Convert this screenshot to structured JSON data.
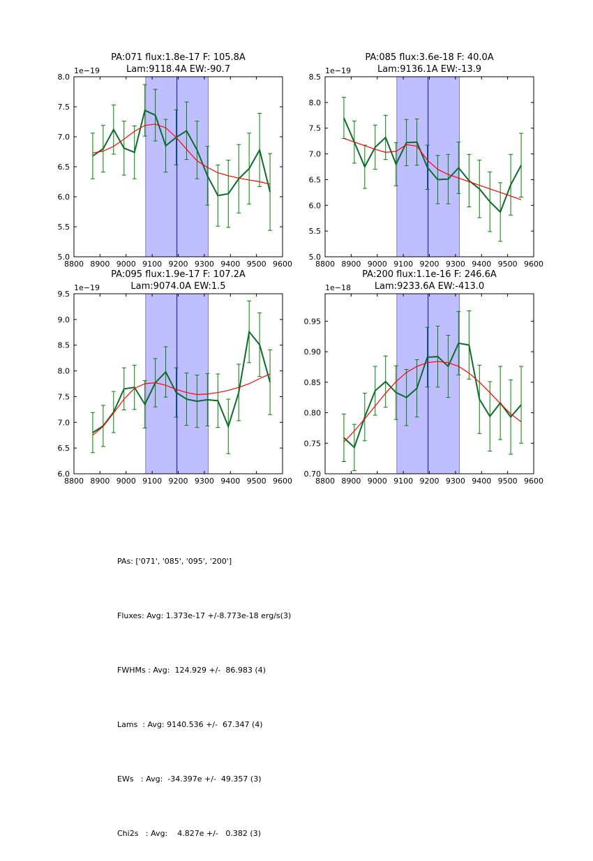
{
  "chart_data": [
    {
      "type": "line",
      "title_line1": "PA:071 flux:1.8e-17 F: 105.8A",
      "title_line2": "Lam:9118.4A EW:-90.7",
      "offset_label": "1e−19",
      "xlim": [
        8800,
        9600
      ],
      "ylim": [
        5.0,
        8.0
      ],
      "xticks": [
        "8800",
        "8900",
        "9000",
        "9100",
        "9200",
        "9300",
        "9400",
        "9500",
        "9600"
      ],
      "yticks": [
        "5.0",
        "5.5",
        "6.0",
        "6.5",
        "7.0",
        "7.5",
        "8.0"
      ],
      "band": [
        9075,
        9315
      ],
      "center_line": 9195,
      "x": [
        8872,
        8912,
        8952,
        8992,
        9032,
        9072,
        9112,
        9152,
        9192,
        9232,
        9272,
        9312,
        9352,
        9392,
        9432,
        9472,
        9512,
        9552
      ],
      "series": [
        {
          "name": "data",
          "values": [
            6.68,
            6.8,
            7.12,
            6.81,
            6.74,
            7.44,
            7.36,
            6.85,
            6.99,
            7.1,
            6.78,
            6.35,
            6.02,
            6.05,
            6.3,
            6.47,
            6.78,
            6.08
          ],
          "errors": [
            0.38,
            0.39,
            0.41,
            0.45,
            0.44,
            0.43,
            0.43,
            0.44,
            0.46,
            0.48,
            0.48,
            0.49,
            0.51,
            0.56,
            0.57,
            0.59,
            0.61,
            0.64
          ]
        },
        {
          "name": "fit",
          "values": [
            6.73,
            6.76,
            6.84,
            6.96,
            7.09,
            7.19,
            7.21,
            7.15,
            6.99,
            6.79,
            6.6,
            6.49,
            6.4,
            6.35,
            6.31,
            6.28,
            6.25,
            6.21
          ]
        }
      ]
    },
    {
      "type": "line",
      "title_line1": "PA:085 flux:3.6e-18 F: 40.0A",
      "title_line2": "Lam:9136.1A EW:-13.9",
      "offset_label": "1e−19",
      "xlim": [
        8800,
        9600
      ],
      "ylim": [
        5.0,
        8.5
      ],
      "xticks": [
        "8800",
        "8900",
        "9000",
        "9100",
        "9200",
        "9300",
        "9400",
        "9500",
        "9600"
      ],
      "yticks": [
        "5.0",
        "5.5",
        "6.0",
        "6.5",
        "7.0",
        "7.5",
        "8.0",
        "8.5"
      ],
      "band": [
        9075,
        9315
      ],
      "center_line": 9195,
      "x": [
        8872,
        8912,
        8952,
        8992,
        9032,
        9072,
        9112,
        9152,
        9192,
        9232,
        9272,
        9312,
        9352,
        9392,
        9432,
        9472,
        9512,
        9552
      ],
      "series": [
        {
          "name": "data",
          "values": [
            7.7,
            7.23,
            6.75,
            7.13,
            7.32,
            6.8,
            7.22,
            7.23,
            6.74,
            6.5,
            6.51,
            6.73,
            6.48,
            6.32,
            6.07,
            5.87,
            6.4,
            6.78
          ],
          "errors": [
            0.4,
            0.41,
            0.42,
            0.43,
            0.43,
            0.42,
            0.45,
            0.45,
            0.43,
            0.47,
            0.48,
            0.5,
            0.51,
            0.56,
            0.58,
            0.57,
            0.59,
            0.62
          ]
        },
        {
          "name": "fit",
          "values": [
            7.3,
            7.23,
            7.16,
            7.09,
            7.03,
            7.05,
            7.18,
            7.15,
            6.88,
            6.7,
            6.6,
            6.53,
            6.46,
            6.39,
            6.32,
            6.25,
            6.18,
            6.11
          ]
        }
      ]
    },
    {
      "type": "line",
      "title_line1": "PA:095 flux:1.9e-17 F: 107.2A",
      "title_line2": "Lam:9074.0A EW:1.5",
      "offset_label": "1e−19",
      "xlim": [
        8800,
        9600
      ],
      "ylim": [
        6.0,
        9.5
      ],
      "xticks": [
        "8800",
        "8900",
        "9000",
        "9100",
        "9200",
        "9300",
        "9400",
        "9500",
        "9600"
      ],
      "yticks": [
        "6.0",
        "6.5",
        "7.0",
        "7.5",
        "8.0",
        "8.5",
        "9.0",
        "9.5"
      ],
      "band": [
        9075,
        9315
      ],
      "center_line": 9195,
      "x": [
        8872,
        8912,
        8952,
        8992,
        9032,
        9072,
        9112,
        9152,
        9192,
        9232,
        9272,
        9312,
        9352,
        9392,
        9432,
        9472,
        9512,
        9552
      ],
      "series": [
        {
          "name": "data",
          "values": [
            6.8,
            6.93,
            7.2,
            7.65,
            7.68,
            7.35,
            7.77,
            7.98,
            7.58,
            7.45,
            7.41,
            7.44,
            7.42,
            6.92,
            7.58,
            8.76,
            8.51,
            7.78
          ],
          "errors": [
            0.39,
            0.4,
            0.4,
            0.41,
            0.43,
            0.46,
            0.47,
            0.49,
            0.48,
            0.51,
            0.51,
            0.51,
            0.52,
            0.53,
            0.55,
            0.6,
            0.62,
            0.63
          ]
        },
        {
          "name": "fit",
          "values": [
            6.75,
            6.92,
            7.18,
            7.45,
            7.66,
            7.75,
            7.77,
            7.72,
            7.64,
            7.58,
            7.54,
            7.55,
            7.58,
            7.62,
            7.68,
            7.75,
            7.85,
            7.94
          ]
        }
      ]
    },
    {
      "type": "line",
      "title_line1": "PA:200 flux:1.1e-16 F: 246.6A",
      "title_line2": "Lam:9233.6A EW:-413.0",
      "offset_label": "1e−18",
      "xlim": [
        8800,
        9600
      ],
      "ylim": [
        0.7,
        0.995
      ],
      "xticks": [
        "8800",
        "8900",
        "9000",
        "9100",
        "9200",
        "9300",
        "9400",
        "9500",
        "9600"
      ],
      "yticks": [
        "0.70",
        "0.75",
        "0.80",
        "0.85",
        "0.90",
        "0.95"
      ],
      "band": [
        9075,
        9315
      ],
      "center_line": 9195,
      "x": [
        8872,
        8912,
        8952,
        8992,
        9032,
        9072,
        9112,
        9152,
        9192,
        9232,
        9272,
        9312,
        9352,
        9392,
        9432,
        9472,
        9512,
        9552
      ],
      "series": [
        {
          "name": "data",
          "values": [
            0.759,
            0.743,
            0.793,
            0.836,
            0.851,
            0.833,
            0.825,
            0.84,
            0.891,
            0.892,
            0.876,
            0.914,
            0.911,
            0.822,
            0.794,
            0.816,
            0.793,
            0.813
          ],
          "errors": [
            0.039,
            0.038,
            0.039,
            0.04,
            0.042,
            0.044,
            0.046,
            0.047,
            0.049,
            0.05,
            0.051,
            0.052,
            0.056,
            0.056,
            0.057,
            0.06,
            0.061,
            0.063
          ]
        },
        {
          "name": "fit",
          "values": [
            0.752,
            0.77,
            0.79,
            0.811,
            0.832,
            0.851,
            0.866,
            0.876,
            0.882,
            0.884,
            0.882,
            0.876,
            0.865,
            0.85,
            0.833,
            0.815,
            0.798,
            0.785
          ]
        }
      ]
    }
  ],
  "summary": {
    "pas": "PAs: ['071', '085', '095', '200']",
    "fluxes": "Fluxes: Avg: 1.373e-17 +/-8.773e-18 erg/s(3)",
    "fwhms": "FWHMs : Avg:  124.929 +/-  86.983 (4)",
    "lams": "Lams  : Avg: 9140.536 +/-  67.347 (4)",
    "ews": "EWs   : Avg:  -34.397e +/-  49.357 (3)",
    "chi2s": "Chi2s   : Avg:    4.827e +/-   0.382 (3)"
  },
  "colors": {
    "data": "#0a6b2a",
    "errbar": "#008000",
    "fit": "#ff0000",
    "band": "#bfbfff",
    "band_edge": "#7f7fbf",
    "center": "#0000ff"
  }
}
